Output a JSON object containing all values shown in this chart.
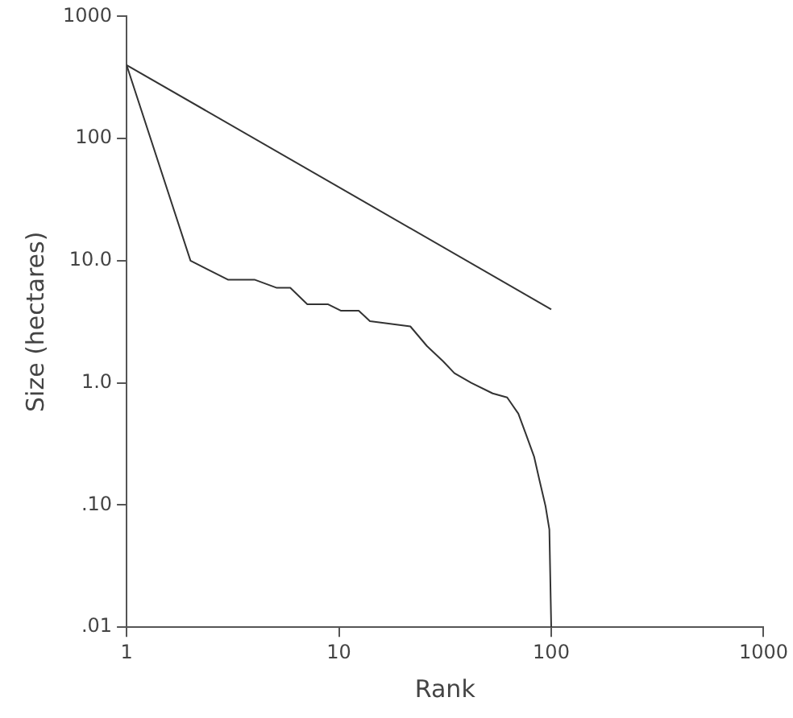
{
  "chart_data": {
    "type": "line",
    "xlabel": "Rank",
    "ylabel": "Size (hectares)",
    "log": "xy",
    "grid": false,
    "legend": false,
    "marker": "none",
    "line_style": "solid",
    "xlim": [
      1,
      1000
    ],
    "xticks": [
      1,
      10,
      100,
      1000
    ],
    "ylim": [
      0.01,
      1000
    ],
    "yticks": [
      {
        "value": 0.01,
        "label": ".01"
      },
      {
        "value": 0.1,
        "label": ".10"
      },
      {
        "value": 1,
        "label": "1.0"
      },
      {
        "value": 10,
        "label": "10.0"
      },
      100,
      1000
    ],
    "series": [
      {
        "color": "#333333",
        "x": [
          1,
          100
        ],
        "values": [
          400,
          4
        ]
      },
      {
        "color": "#333333",
        "x": [
          1,
          2,
          3,
          4,
          5.1,
          5.9,
          7.1,
          8.9,
          10.2,
          12.4,
          14,
          21.7,
          26,
          31,
          35,
          42,
          53,
          62,
          70,
          76,
          83,
          88,
          94,
          98,
          100
        ],
        "values": [
          400,
          10,
          7,
          7,
          6,
          6,
          4.4,
          4.4,
          3.9,
          3.9,
          3.2,
          2.9,
          2,
          1.5,
          1.2,
          1,
          0.82,
          0.76,
          0.56,
          0.38,
          0.25,
          0.16,
          0.098,
          0.063,
          0.01
        ]
      }
    ]
  }
}
